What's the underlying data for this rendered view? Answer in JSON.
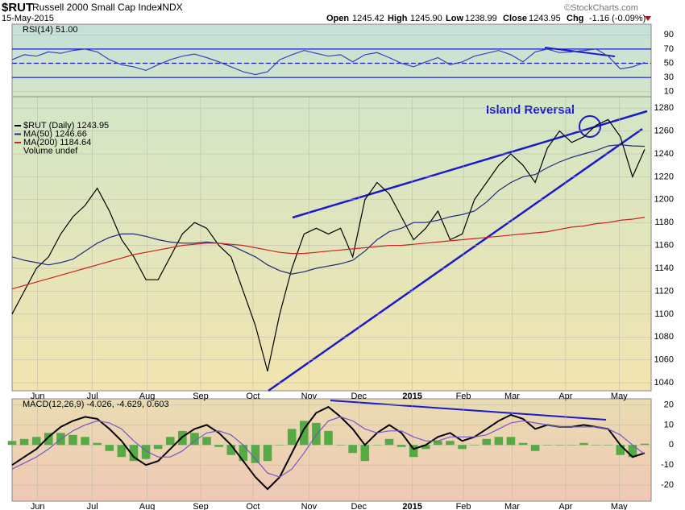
{
  "header": {
    "symbol": "$RUT",
    "name": "Russell 2000 Small Cap Index",
    "exchange": "INDX",
    "date": "15-May-2015",
    "open_label": "Open",
    "open": "1245.42",
    "high_label": "High",
    "high": "1245.90",
    "low_label": "Low",
    "low": "1238.99",
    "close_label": "Close",
    "close": "1243.95",
    "chg_label": "Chg",
    "chg": "-1.16 (-0.09%)",
    "source": "©StockCharts.com"
  },
  "chart_data": [
    {
      "type": "line",
      "legend": "RSI(14) 51.00",
      "xlim": [
        0,
        52
      ],
      "ylim": [
        3,
        105
      ],
      "yticks": [
        10,
        30,
        50,
        70,
        90
      ],
      "levels": [
        30,
        50,
        70
      ],
      "level_color": "#1a1acc",
      "series": [
        {
          "color": "#3344bb",
          "values": [
            55,
            62,
            60,
            66,
            64,
            68,
            70,
            66,
            55,
            48,
            45,
            40,
            48,
            55,
            60,
            63,
            58,
            52,
            45,
            38,
            34,
            38,
            55,
            62,
            68,
            64,
            60,
            62,
            52,
            62,
            65,
            58,
            50,
            45,
            52,
            58,
            48,
            52,
            60,
            64,
            68,
            62,
            52,
            66,
            70,
            65,
            66,
            68,
            70,
            60,
            42,
            45,
            51
          ]
        }
      ]
    },
    {
      "type": "line",
      "annotation": "Island Reversal",
      "notes": [
        "Volume undef"
      ],
      "xlim": [
        0,
        52
      ],
      "ylim": [
        1033,
        1290
      ],
      "yticks": [
        1040,
        1060,
        1080,
        1100,
        1120,
        1140,
        1160,
        1180,
        1200,
        1220,
        1240,
        1260,
        1280
      ],
      "xticks": [
        {
          "value": 2.1,
          "label": "Jun"
        },
        {
          "value": 6.6,
          "label": "Jul"
        },
        {
          "value": 11.1,
          "label": "Aug"
        },
        {
          "value": 15.5,
          "label": "Sep"
        },
        {
          "value": 19.8,
          "label": "Oct"
        },
        {
          "value": 24.4,
          "label": "Nov"
        },
        {
          "value": 28.5,
          "label": "Dec"
        },
        {
          "value": 32.9,
          "label": "2015"
        },
        {
          "value": 37.1,
          "label": "Feb"
        },
        {
          "value": 41.1,
          "label": "Mar"
        },
        {
          "value": 45.5,
          "label": "Apr"
        },
        {
          "value": 49.9,
          "label": "May"
        }
      ],
      "series": [
        {
          "name": "$RUT (Daily) 1243.95",
          "color": "#000000",
          "values": [
            1100,
            1120,
            1140,
            1150,
            1170,
            1185,
            1195,
            1210,
            1190,
            1165,
            1150,
            1130,
            1130,
            1150,
            1170,
            1180,
            1175,
            1160,
            1150,
            1120,
            1090,
            1050,
            1100,
            1140,
            1170,
            1175,
            1170,
            1175,
            1150,
            1200,
            1215,
            1205,
            1185,
            1165,
            1175,
            1190,
            1165,
            1170,
            1200,
            1215,
            1230,
            1240,
            1230,
            1215,
            1245,
            1260,
            1250,
            1255,
            1265,
            1270,
            1255,
            1220,
            1243.95
          ]
        },
        {
          "name": "MA(50) 1246.66",
          "color": "#1c2a80",
          "values": [
            1150,
            1147,
            1145,
            1143,
            1145,
            1148,
            1155,
            1162,
            1167,
            1170,
            1170,
            1168,
            1165,
            1163,
            1162,
            1162,
            1163,
            1162,
            1160,
            1155,
            1150,
            1143,
            1138,
            1135,
            1137,
            1140,
            1142,
            1144,
            1147,
            1155,
            1165,
            1172,
            1175,
            1180,
            1180,
            1182,
            1185,
            1187,
            1190,
            1198,
            1208,
            1215,
            1220,
            1222,
            1228,
            1233,
            1237,
            1240,
            1243,
            1247,
            1248,
            1247,
            1246.66
          ]
        },
        {
          "name": "MA(200) 1184.64",
          "color": "#cc2222",
          "values": [
            1122,
            1125,
            1128,
            1131,
            1134,
            1137,
            1140,
            1143,
            1146,
            1149,
            1152,
            1154,
            1156,
            1158,
            1160,
            1161,
            1162,
            1162,
            1161,
            1160,
            1158,
            1156,
            1154,
            1153,
            1153,
            1154,
            1155,
            1156,
            1157,
            1158,
            1159,
            1160,
            1160,
            1161,
            1162,
            1163,
            1164,
            1165,
            1166,
            1167,
            1168,
            1169,
            1170,
            1171,
            1172,
            1174,
            1176,
            1177,
            1179,
            1180,
            1182,
            1183,
            1184.64
          ]
        }
      ]
    },
    {
      "type": "line",
      "legend": "MACD(12,26,9) -4.026, -4.629, 0.603",
      "xlim": [
        0,
        52
      ],
      "ylim": [
        -28,
        23
      ],
      "yticks": [
        -20,
        -10,
        0,
        10,
        20
      ],
      "xticks": [
        {
          "value": 2.1,
          "label": "Jun"
        },
        {
          "value": 6.6,
          "label": "Jul"
        },
        {
          "value": 11.1,
          "label": "Aug"
        },
        {
          "value": 15.5,
          "label": "Sep"
        },
        {
          "value": 19.8,
          "label": "Oct"
        },
        {
          "value": 24.4,
          "label": "Nov"
        },
        {
          "value": 28.5,
          "label": "Dec"
        },
        {
          "value": 32.9,
          "label": "2015"
        },
        {
          "value": 37.1,
          "label": "Feb"
        },
        {
          "value": 41.1,
          "label": "Mar"
        },
        {
          "value": 45.5,
          "label": "Apr"
        },
        {
          "value": 49.9,
          "label": "May"
        }
      ],
      "series": [
        {
          "kind": "bar",
          "color": "#55aa44",
          "values": [
            2,
            3,
            4,
            6,
            6,
            5,
            4,
            1,
            -3,
            -6,
            -8,
            -7,
            -2,
            4,
            7,
            6,
            4,
            -1,
            -5,
            -8,
            -9,
            -8,
            0,
            8,
            12,
            11,
            7,
            0,
            -4,
            -8,
            0,
            3,
            -1,
            -6,
            -2,
            2,
            2,
            -2,
            0,
            3,
            4,
            4,
            1,
            -3,
            0,
            0,
            0,
            1,
            0,
            0,
            -5,
            -6,
            0.603
          ]
        },
        {
          "kind": "line",
          "color": "#000000",
          "values": [
            -10,
            -6,
            -2,
            4,
            9,
            12,
            14,
            13,
            8,
            2,
            -6,
            -10,
            -8,
            -2,
            4,
            8,
            10,
            6,
            0,
            -8,
            -16,
            -22,
            -16,
            -4,
            8,
            16,
            19,
            14,
            8,
            0,
            6,
            10,
            6,
            -2,
            0,
            4,
            6,
            2,
            4,
            8,
            12,
            15,
            13,
            8,
            10,
            9,
            9,
            10,
            9,
            8,
            0,
            -6,
            -4.026
          ]
        },
        {
          "kind": "line",
          "color": "#7755cc",
          "values": [
            -12,
            -9,
            -6,
            -2,
            3,
            7,
            10,
            12,
            11,
            8,
            2,
            -3,
            -6,
            -6,
            -3,
            2,
            6,
            7,
            5,
            0,
            -7,
            -14,
            -16,
            -12,
            -4,
            5,
            12,
            14,
            12,
            8,
            6,
            7,
            7,
            4,
            2,
            2,
            4,
            4,
            4,
            5,
            8,
            11,
            12,
            11,
            10,
            9,
            9,
            9,
            9,
            8,
            5,
            0,
            -4.629
          ]
        }
      ]
    }
  ]
}
